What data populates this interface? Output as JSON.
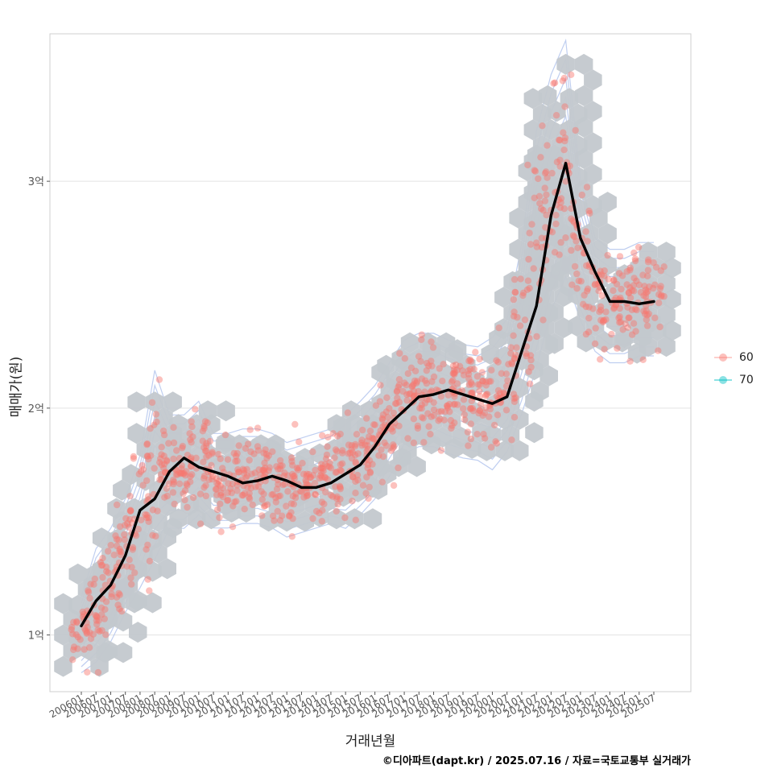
{
  "chart_data": {
    "type": "scatter",
    "ylabel": "매매가(원)",
    "xlabel": "거래년월",
    "credit": "©디아파트(dapt.kr) / 2025.07.16 / 자료=국토교통부 실거래가",
    "y_unit": "억원",
    "ylim": [
      0.75,
      3.65
    ],
    "y_ticks": [
      {
        "value": 1,
        "label": "1억"
      },
      {
        "value": 2,
        "label": "2억"
      },
      {
        "value": 3,
        "label": "3억"
      }
    ],
    "x_tick_labels": [
      "200601",
      "200607",
      "200701",
      "200707",
      "200801",
      "200807",
      "200901",
      "200907",
      "201001",
      "201007",
      "201101",
      "201107",
      "201201",
      "201207",
      "201301",
      "201307",
      "201401",
      "201407",
      "201501",
      "201507",
      "201601",
      "201607",
      "201701",
      "201707",
      "201801",
      "201807",
      "201901",
      "201907",
      "202001",
      "202007",
      "202101",
      "202107",
      "202201",
      "202207",
      "202301",
      "202307",
      "202401",
      "202407",
      "202501",
      "202507"
    ],
    "grid": true,
    "legend_position": "right",
    "colors": {
      "series_60": "#F8766D",
      "series_70": "#00BFC4",
      "hex": "#C3C8CD",
      "contour": "#A9BDEB",
      "trend": "#000000"
    },
    "series": [
      {
        "name": "60"
      },
      {
        "name": "70"
      }
    ],
    "trend": {
      "x": [
        "200601",
        "200607",
        "200701",
        "200707",
        "200801",
        "200807",
        "200901",
        "200907",
        "201001",
        "201007",
        "201101",
        "201107",
        "201201",
        "201207",
        "201301",
        "201307",
        "201401",
        "201407",
        "201501",
        "201507",
        "201601",
        "201607",
        "201701",
        "201707",
        "201801",
        "201807",
        "201901",
        "201907",
        "202001",
        "202007",
        "202101",
        "202107",
        "202201",
        "202207",
        "202301",
        "202307",
        "202401",
        "202407",
        "202501",
        "202507"
      ],
      "y": [
        1.04,
        1.15,
        1.22,
        1.35,
        1.55,
        1.6,
        1.72,
        1.78,
        1.74,
        1.72,
        1.7,
        1.67,
        1.68,
        1.7,
        1.68,
        1.65,
        1.65,
        1.67,
        1.71,
        1.75,
        1.83,
        1.93,
        1.99,
        2.05,
        2.06,
        2.08,
        2.06,
        2.04,
        2.02,
        2.05,
        2.25,
        2.45,
        2.85,
        3.08,
        2.75,
        2.6,
        2.47,
        2.47,
        2.46,
        2.47
      ]
    },
    "clusters": [
      {
        "x": "200601",
        "y": 1.0,
        "sd": 0.08
      },
      {
        "x": "200607",
        "y": 1.13,
        "sd": 0.12
      },
      {
        "x": "200701",
        "y": 1.22,
        "sd": 0.12
      },
      {
        "x": "200707",
        "y": 1.35,
        "sd": 0.12
      },
      {
        "x": "200801",
        "y": 1.5,
        "sd": 0.14
      },
      {
        "x": "200807",
        "y": 1.75,
        "sd": 0.2
      },
      {
        "x": "200901",
        "y": 1.72,
        "sd": 0.12
      },
      {
        "x": "200907",
        "y": 1.72,
        "sd": 0.12
      },
      {
        "x": "201001",
        "y": 1.78,
        "sd": 0.12
      },
      {
        "x": "201007",
        "y": 1.68,
        "sd": 0.1
      },
      {
        "x": "201101",
        "y": 1.68,
        "sd": 0.1
      },
      {
        "x": "201107",
        "y": 1.7,
        "sd": 0.1
      },
      {
        "x": "201201",
        "y": 1.7,
        "sd": 0.1
      },
      {
        "x": "201207",
        "y": 1.68,
        "sd": 0.1
      },
      {
        "x": "201301",
        "y": 1.64,
        "sd": 0.1
      },
      {
        "x": "201307",
        "y": 1.66,
        "sd": 0.1
      },
      {
        "x": "201401",
        "y": 1.68,
        "sd": 0.1
      },
      {
        "x": "201407",
        "y": 1.7,
        "sd": 0.1
      },
      {
        "x": "201501",
        "y": 1.72,
        "sd": 0.12
      },
      {
        "x": "201507",
        "y": 1.78,
        "sd": 0.12
      },
      {
        "x": "201601",
        "y": 1.85,
        "sd": 0.12
      },
      {
        "x": "201607",
        "y": 1.95,
        "sd": 0.12
      },
      {
        "x": "201701",
        "y": 2.05,
        "sd": 0.12
      },
      {
        "x": "201707",
        "y": 2.08,
        "sd": 0.12
      },
      {
        "x": "201801",
        "y": 2.08,
        "sd": 0.12
      },
      {
        "x": "201807",
        "y": 2.05,
        "sd": 0.12
      },
      {
        "x": "201901",
        "y": 2.03,
        "sd": 0.12
      },
      {
        "x": "201907",
        "y": 2.02,
        "sd": 0.12
      },
      {
        "x": "202001",
        "y": 2.02,
        "sd": 0.14
      },
      {
        "x": "202007",
        "y": 2.1,
        "sd": 0.14
      },
      {
        "x": "202101",
        "y": 2.35,
        "sd": 0.18
      },
      {
        "x": "202107",
        "y": 2.7,
        "sd": 0.25
      },
      {
        "x": "202201",
        "y": 2.95,
        "sd": 0.25
      },
      {
        "x": "202207",
        "y": 3.1,
        "sd": 0.25
      },
      {
        "x": "202301",
        "y": 2.7,
        "sd": 0.15
      },
      {
        "x": "202307",
        "y": 2.5,
        "sd": 0.12
      },
      {
        "x": "202401",
        "y": 2.45,
        "sd": 0.12
      },
      {
        "x": "202407",
        "y": 2.45,
        "sd": 0.12
      },
      {
        "x": "202501",
        "y": 2.48,
        "sd": 0.12
      },
      {
        "x": "202507",
        "y": 2.48,
        "sd": 0.12
      }
    ]
  }
}
